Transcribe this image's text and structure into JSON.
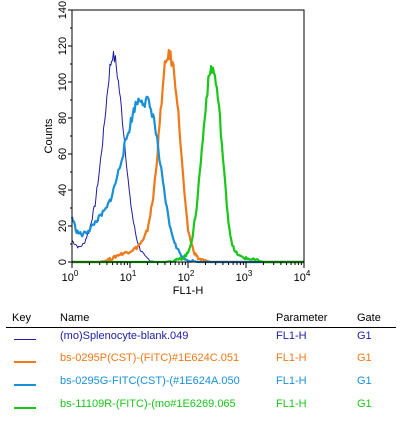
{
  "chart_data": {
    "type": "histogram-overlay",
    "xlabel": "FL1-H",
    "ylabel": "Counts",
    "xscale": "log",
    "xlim": [
      1,
      10000
    ],
    "ylim": [
      0,
      140
    ],
    "y_ticks": [
      0,
      20,
      40,
      60,
      80,
      100,
      120,
      140
    ],
    "x_ticks": [
      {
        "base": "10",
        "exp": "0"
      },
      {
        "base": "10",
        "exp": "1"
      },
      {
        "base": "10",
        "exp": "2"
      },
      {
        "base": "10",
        "exp": "3"
      },
      {
        "base": "10",
        "exp": "4"
      }
    ],
    "series": [
      {
        "name": "(mo)Splenocyte-blank.049",
        "color": "#1c1ca8",
        "points": [
          [
            1.0,
            12
          ],
          [
            1.3,
            8
          ],
          [
            1.6,
            10
          ],
          [
            2.0,
            18
          ],
          [
            2.5,
            32
          ],
          [
            3.0,
            52
          ],
          [
            3.5,
            72
          ],
          [
            4.0,
            92
          ],
          [
            4.5,
            108
          ],
          [
            5.0,
            115
          ],
          [
            5.6,
            112
          ],
          [
            6.3,
            100
          ],
          [
            7.1,
            85
          ],
          [
            8.0,
            68
          ],
          [
            9.0,
            50
          ],
          [
            10.0,
            35
          ],
          [
            11.5,
            22
          ],
          [
            13.0,
            13
          ],
          [
            15.0,
            7
          ],
          [
            18.0,
            3
          ],
          [
            22.0,
            1
          ],
          [
            28.0,
            0
          ],
          [
            1000,
            0
          ],
          [
            10000,
            0
          ]
        ]
      },
      {
        "name": "bs-0295P(CST)-(FITC)#1E624C.051",
        "color": "#f07818",
        "points": [
          [
            1,
            0
          ],
          [
            3,
            0
          ],
          [
            4.0,
            1
          ],
          [
            5.0,
            2
          ],
          [
            6.3,
            4
          ],
          [
            8.0,
            5
          ],
          [
            10,
            6
          ],
          [
            13,
            8
          ],
          [
            17,
            12
          ],
          [
            20,
            18
          ],
          [
            25,
            35
          ],
          [
            30,
            62
          ],
          [
            35,
            90
          ],
          [
            40,
            108
          ],
          [
            45,
            115
          ],
          [
            50,
            114
          ],
          [
            56,
            108
          ],
          [
            63,
            95
          ],
          [
            71,
            75
          ],
          [
            80,
            52
          ],
          [
            90,
            32
          ],
          [
            100,
            18
          ],
          [
            115,
            10
          ],
          [
            130,
            5
          ],
          [
            150,
            2
          ],
          [
            180,
            1
          ],
          [
            250,
            0
          ],
          [
            10000,
            0
          ]
        ]
      },
      {
        "name": "bs-0295G-FITC(CST)-(#1E624A.050",
        "color": "#1890d8",
        "points": [
          [
            1.0,
            25
          ],
          [
            1.2,
            17
          ],
          [
            1.5,
            15
          ],
          [
            2.0,
            18
          ],
          [
            2.5,
            22
          ],
          [
            3.0,
            25
          ],
          [
            4.0,
            30
          ],
          [
            5.0,
            38
          ],
          [
            6.3,
            50
          ],
          [
            8.0,
            64
          ],
          [
            10,
            76
          ],
          [
            12,
            86
          ],
          [
            14,
            90
          ],
          [
            16,
            91
          ],
          [
            18,
            88
          ],
          [
            20,
            90
          ],
          [
            22,
            86
          ],
          [
            25,
            82
          ],
          [
            28,
            72
          ],
          [
            32,
            58
          ],
          [
            40,
            36
          ],
          [
            50,
            18
          ],
          [
            63,
            8
          ],
          [
            80,
            3
          ],
          [
            100,
            1
          ],
          [
            150,
            0
          ],
          [
            10000,
            0
          ]
        ]
      },
      {
        "name": "bs-11109R-(FITC)-(mo#1E6269.065",
        "color": "#18c818",
        "points": [
          [
            1,
            0
          ],
          [
            40,
            0
          ],
          [
            63,
            1
          ],
          [
            80,
            2
          ],
          [
            100,
            5
          ],
          [
            120,
            14
          ],
          [
            140,
            30
          ],
          [
            160,
            50
          ],
          [
            180,
            68
          ],
          [
            200,
            86
          ],
          [
            225,
            100
          ],
          [
            250,
            108
          ],
          [
            280,
            106
          ],
          [
            315,
            96
          ],
          [
            355,
            80
          ],
          [
            400,
            58
          ],
          [
            450,
            38
          ],
          [
            500,
            22
          ],
          [
            560,
            12
          ],
          [
            630,
            6
          ],
          [
            800,
            3
          ],
          [
            1000,
            2
          ],
          [
            1500,
            1
          ],
          [
            2000,
            0
          ],
          [
            10000,
            0
          ]
        ]
      }
    ]
  },
  "legend": {
    "headers": {
      "key": "Key",
      "name": "Name",
      "parameter": "Parameter",
      "gate": "Gate"
    },
    "rows": [
      {
        "name": "(mo)Splenocyte-blank.049",
        "parameter": "FL1-H",
        "gate": "G1",
        "color": "#1c1ca8"
      },
      {
        "name": "bs-0295P(CST)-(FITC)#1E624C.051",
        "parameter": "FL1-H",
        "gate": "G1",
        "color": "#f07818"
      },
      {
        "name": "bs-0295G-FITC(CST)-(#1E624A.050",
        "parameter": "FL1-H",
        "gate": "G1",
        "color": "#1890d8"
      },
      {
        "name": "bs-11109R-(FITC)-(mo#1E6269.065",
        "parameter": "FL1-H",
        "gate": "G1",
        "color": "#18c818"
      }
    ]
  }
}
